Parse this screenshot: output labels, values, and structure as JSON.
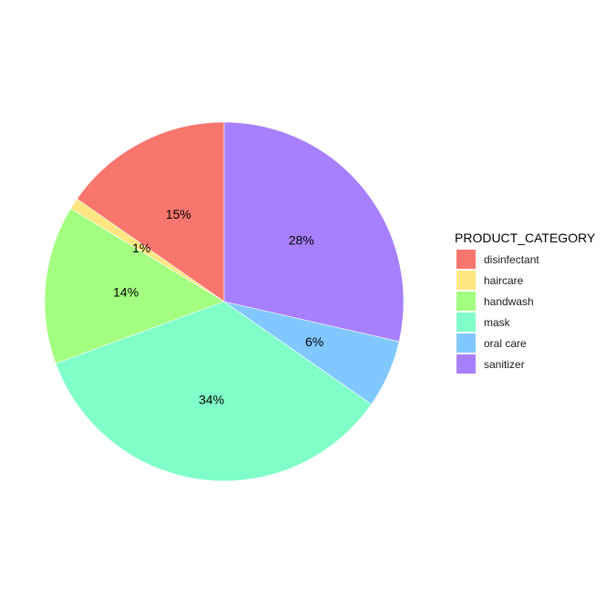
{
  "chart_data": {
    "type": "pie",
    "categories": [
      "disinfectant",
      "haircare",
      "handwash",
      "mask",
      "oral care",
      "sanitizer"
    ],
    "values": [
      15,
      1,
      14,
      34,
      6,
      28
    ],
    "labels": [
      "15%",
      "1%",
      "14%",
      "34%",
      "6%",
      "28%"
    ],
    "colors": [
      "#F8766D",
      "#FFE680",
      "#A3FF80",
      "#80FFC8",
      "#80C8FF",
      "#A680FF"
    ],
    "start": "12 o'clock",
    "direction": "counterclockwise",
    "legend": {
      "title": "PRODUCT_CATEGORY",
      "position": "right"
    }
  }
}
